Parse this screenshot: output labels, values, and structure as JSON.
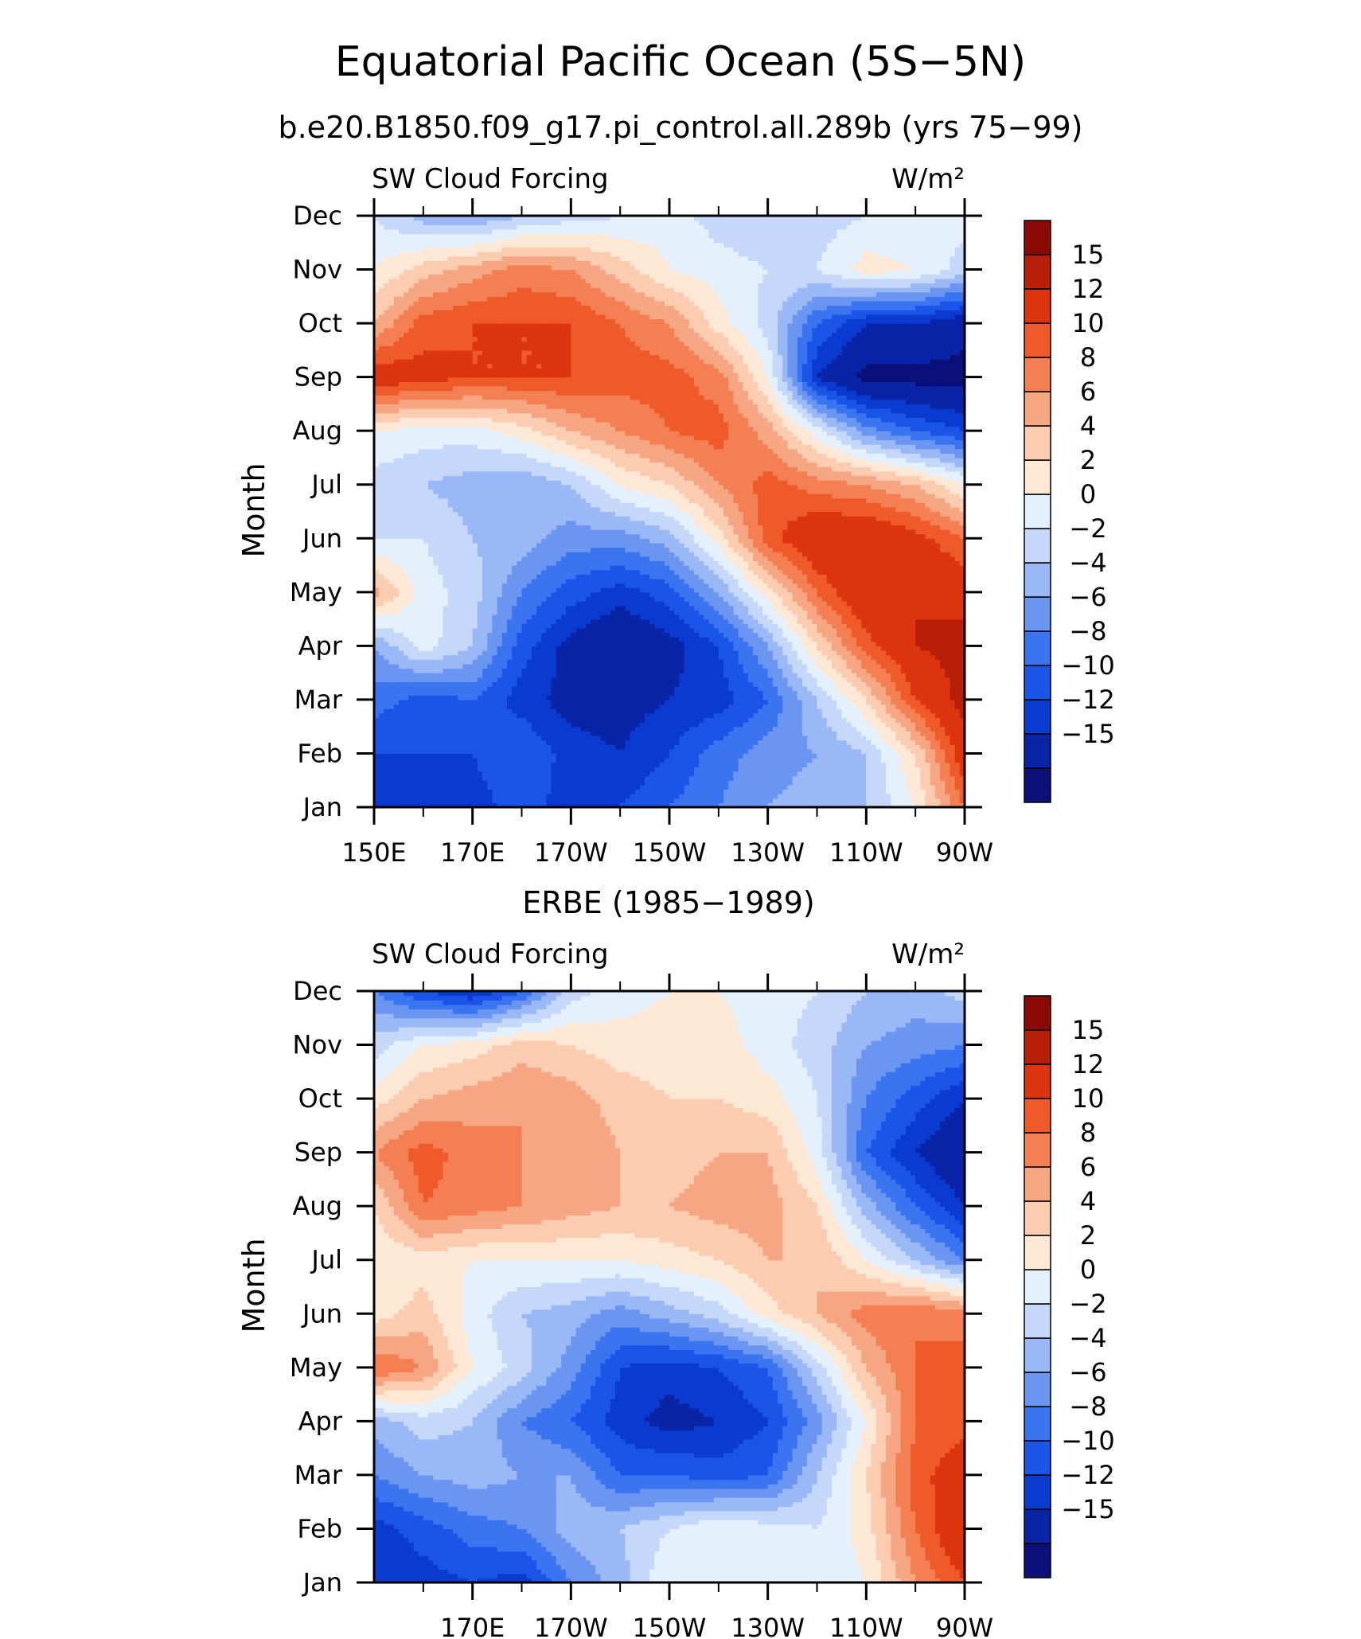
{
  "figure": {
    "title": "Equatorial Pacific Ocean (5S−5N)",
    "colorbar_colors": [
      "#0a0f7a",
      "#0a24a8",
      "#0b3ad0",
      "#1a55e8",
      "#3a74f0",
      "#6a96f2",
      "#9bb8f6",
      "#c5d8fa",
      "#e5f0fd",
      "#fde8d6",
      "#fbccb0",
      "#f7a683",
      "#f47f52",
      "#ef5a2a",
      "#dc3510",
      "#b81f08",
      "#8c0a05"
    ],
    "colorbar_labels": [
      "15",
      "12",
      "10",
      "8",
      "6",
      "4",
      "2",
      "0",
      "−2",
      "−4",
      "−6",
      "−8",
      "−10",
      "−12",
      "−15"
    ]
  },
  "chart_data": [
    {
      "type": "heatmap",
      "title": "b.e20.B1850.f09_g17.pi_control.all.289b (yrs 75−99)",
      "left_label": "SW Cloud Forcing",
      "units": "W/m²",
      "ylabel": "Month",
      "xlabel": "",
      "x_tick_labels": [
        "150E",
        "170E",
        "170W",
        "150W",
        "130W",
        "110W",
        "90W"
      ],
      "y_tick_labels": [
        "Jan",
        "Feb",
        "Mar",
        "Apr",
        "May",
        "Jun",
        "Jul",
        "Aug",
        "Sep",
        "Oct",
        "Nov",
        "Dec"
      ],
      "xlim_deg_east": [
        150,
        270
      ],
      "contour_levels": [
        -15,
        -12,
        -10,
        -8,
        -6,
        -4,
        -2,
        0,
        2,
        4,
        6,
        8,
        10,
        12,
        15
      ],
      "x": [
        150,
        160,
        170,
        180,
        190,
        200,
        210,
        220,
        230,
        240,
        250,
        260,
        270
      ],
      "values": [
        [
          -11,
          -12,
          -11,
          -9,
          -11,
          -10,
          -8,
          -6,
          -4,
          -3,
          -2,
          2,
          10
        ],
        [
          -10,
          -10,
          -10,
          -8,
          -11,
          -12,
          -10,
          -7,
          -5,
          -4,
          -2,
          4,
          14
        ],
        [
          -7,
          -9,
          -8,
          -11,
          -13,
          -13,
          -12,
          -11,
          -8,
          -2,
          4,
          12,
          16
        ],
        [
          -4,
          1,
          -2,
          -9,
          -13,
          -15,
          -13,
          -10,
          -4,
          4,
          11,
          15,
          16
        ],
        [
          7,
          1,
          -1,
          -6,
          -9,
          -11,
          -9,
          -4,
          3,
          10,
          15,
          15,
          14
        ],
        [
          0,
          0,
          -2,
          -3,
          -5,
          -5,
          -3,
          3,
          11,
          15,
          15,
          13,
          10
        ],
        [
          -1,
          -2,
          -3,
          -4,
          -2,
          2,
          4,
          8,
          11,
          9,
          8,
          6,
          2
        ],
        [
          2,
          1,
          1,
          3,
          6,
          8,
          10,
          11,
          7,
          1,
          -5,
          -8,
          -10
        ],
        [
          14,
          13,
          12,
          12,
          12,
          11,
          11,
          9,
          2,
          -12,
          -16,
          -16,
          -16
        ],
        [
          6,
          11,
          12,
          12,
          12,
          10,
          8,
          3,
          -1,
          -8,
          -12,
          -12,
          -14
        ],
        [
          2,
          5,
          7,
          9,
          8,
          5,
          2,
          1,
          0,
          0,
          3,
          2,
          -1
        ],
        [
          0,
          -3,
          -4,
          -2,
          -1,
          0,
          1,
          -1,
          -2,
          -1,
          0,
          0,
          1
        ]
      ]
    },
    {
      "type": "heatmap",
      "title": "ERBE (1985−1989)",
      "left_label": "SW Cloud Forcing",
      "units": "W/m²",
      "ylabel": "Month",
      "xlabel": "",
      "x_tick_labels": [
        "170E",
        "170W",
        "150W",
        "130W",
        "110W",
        "90W"
      ],
      "y_tick_labels": [
        "Jan",
        "Feb",
        "Mar",
        "Apr",
        "May",
        "Jun",
        "Jul",
        "Aug",
        "Sep",
        "Oct",
        "Nov",
        "Dec"
      ],
      "xlim_deg_east": [
        150,
        270
      ],
      "contour_levels": [
        -15,
        -12,
        -10,
        -8,
        -6,
        -4,
        -2,
        0,
        2,
        4,
        6,
        8,
        10,
        12,
        15
      ],
      "x": [
        150,
        160,
        170,
        180,
        190,
        200,
        210,
        220,
        230,
        240,
        250,
        260,
        270
      ],
      "values": [
        [
          -12,
          -11,
          -10,
          -11,
          -6,
          -3,
          2,
          2,
          1,
          0,
          2,
          8,
          12
        ],
        [
          -11,
          -9,
          -7,
          -6,
          -3,
          -2,
          0,
          2,
          1,
          0,
          3,
          10,
          15
        ],
        [
          -6,
          -4,
          -3,
          -4,
          -4,
          -8,
          -8,
          -9,
          -8,
          -2,
          4,
          11,
          14
        ],
        [
          -3,
          -1,
          -2,
          -6,
          -8,
          -11,
          -13,
          -12,
          -10,
          -5,
          2,
          10,
          11
        ],
        [
          10,
          8,
          2,
          -1,
          -5,
          -10,
          -11,
          -10,
          -8,
          -1,
          6,
          10,
          11
        ],
        [
          3,
          5,
          1,
          -2,
          -3,
          -5,
          -3,
          -1,
          3,
          6,
          9,
          10,
          9
        ],
        [
          2,
          3,
          2,
          2,
          2,
          2,
          3,
          4,
          6,
          6,
          2,
          -2,
          -6
        ],
        [
          4,
          10,
          9,
          8,
          7,
          6,
          6,
          7,
          7,
          4,
          -3,
          -8,
          -12
        ],
        [
          8,
          11,
          9,
          8,
          8,
          6,
          5,
          6,
          6,
          1,
          -8,
          -12,
          -15
        ],
        [
          3,
          6,
          7,
          8,
          7,
          5,
          4,
          4,
          3,
          0,
          -6,
          -9,
          -12
        ],
        [
          -1,
          2,
          3,
          5,
          4,
          3,
          3,
          3,
          1,
          -1,
          -4,
          -5,
          -6
        ],
        [
          -6,
          -10,
          -12,
          -8,
          -1,
          1,
          2,
          2,
          1,
          0,
          -2,
          -3,
          -1
        ]
      ]
    }
  ]
}
